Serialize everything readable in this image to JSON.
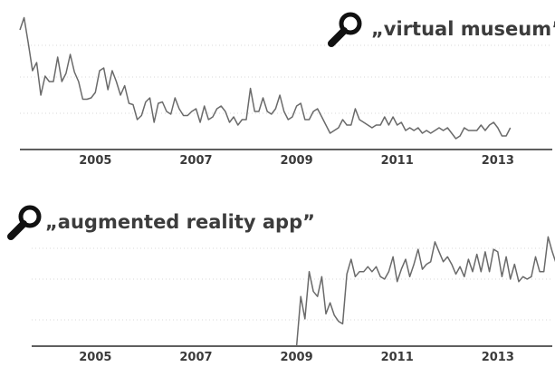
{
  "chart_data": [
    {
      "type": "line",
      "title": "„virtual museum”",
      "icon": "magnifier-icon",
      "xlabel": "",
      "ylabel": "",
      "x_tick_labels": [
        "2005",
        "2007",
        "2009",
        "2011",
        "2013"
      ],
      "x_range": [
        "2004-01",
        "2014-08"
      ],
      "ylim": [
        0,
        100
      ],
      "grid": "horizontal dotted",
      "legend": "none",
      "line_color": "#6a6a6a",
      "series": [
        {
          "x_start": "2004-01",
          "x_step": "month",
          "values": [
            88,
            97,
            78,
            58,
            64,
            40,
            54,
            50,
            50,
            68,
            50,
            56,
            70,
            57,
            50,
            37,
            37,
            38,
            42,
            58,
            60,
            44,
            58,
            50,
            40,
            47,
            34,
            33,
            22,
            25,
            35,
            38,
            20,
            34,
            35,
            28,
            26,
            38,
            30,
            25,
            25,
            28,
            30,
            20,
            32,
            22,
            24,
            30,
            32,
            28,
            20,
            24,
            18,
            22,
            22,
            45,
            28,
            28,
            38,
            28,
            26,
            30,
            40,
            28,
            22,
            24,
            32,
            34,
            22,
            22,
            28,
            30,
            24,
            18,
            12,
            14,
            16,
            22,
            18,
            18,
            30,
            22,
            20,
            18,
            16,
            18,
            18,
            24,
            18,
            24,
            18,
            20,
            14,
            16,
            14,
            16,
            12,
            14,
            12,
            14,
            16,
            14,
            16,
            12,
            8,
            10,
            16,
            14,
            14,
            14,
            18,
            14,
            18,
            20,
            16,
            10,
            10,
            16
          ]
        }
      ]
    },
    {
      "type": "line",
      "title": "„augmented reality app”",
      "icon": "magnifier-icon",
      "xlabel": "",
      "ylabel": "",
      "x_tick_labels": [
        "2005",
        "2007",
        "2009",
        "2011",
        "2013"
      ],
      "x_range": [
        "2004-01",
        "2014-08"
      ],
      "ylim": [
        0,
        100
      ],
      "grid": "horizontal dotted",
      "legend": "none",
      "line_color": "#6a6a6a",
      "series": [
        {
          "x_start": "2009-07",
          "x_step": "month",
          "values": [
            0,
            40,
            22,
            60,
            44,
            40,
            56,
            26,
            35,
            25,
            20,
            18,
            58,
            70,
            56,
            60,
            60,
            64,
            60,
            64,
            56,
            54,
            60,
            72,
            52,
            62,
            70,
            56,
            66,
            78,
            62,
            66,
            68,
            84,
            76,
            68,
            72,
            66,
            58,
            64,
            56,
            70,
            60,
            74,
            60,
            76,
            60,
            78,
            76,
            56,
            72,
            54,
            66,
            52,
            56,
            54,
            56,
            72,
            60,
            60,
            88,
            76,
            66,
            58,
            64,
            50,
            64,
            58,
            66,
            70,
            52,
            64,
            68
          ]
        }
      ]
    }
  ]
}
